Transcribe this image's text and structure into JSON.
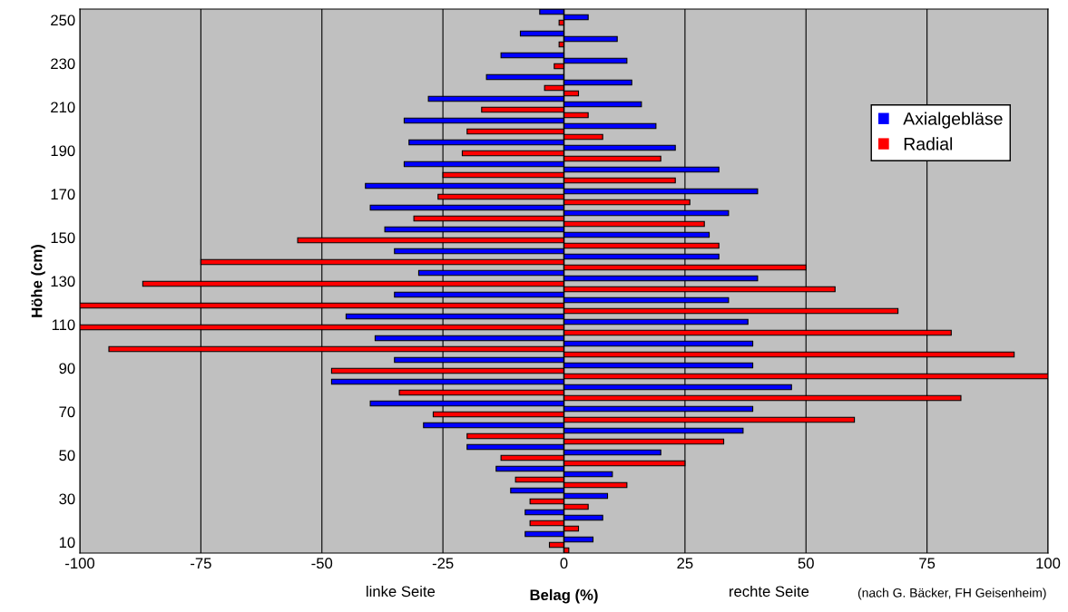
{
  "chart_data": {
    "type": "bar",
    "orientation": "horizontal",
    "xlabel": "Belag (%)",
    "ylabel": "Höhe (cm)",
    "categories": [
      "250",
      null,
      "230",
      null,
      "210",
      null,
      "190",
      null,
      "170",
      null,
      "150",
      null,
      "130",
      null,
      "110",
      null,
      "90",
      null,
      "70",
      null,
      "50",
      null,
      "30",
      null,
      "10"
    ],
    "series": [
      {
        "name": "Axialgebläse",
        "color": "#0000ff",
        "values": [
          -5,
          -9,
          -13,
          -16,
          -28,
          -33,
          -32,
          -33,
          -41,
          -40,
          -37,
          -35,
          -30,
          -35,
          -45,
          -39,
          -35,
          -48,
          -40,
          -29,
          -20,
          -14,
          -11,
          -8,
          -8
        ]
      },
      {
        "color": "#0000ff",
        "values": [
          5,
          11,
          13,
          14,
          16,
          19,
          23,
          32,
          40,
          34,
          30,
          32,
          40,
          34,
          38,
          39,
          39,
          47,
          39,
          37,
          20,
          10,
          9,
          8,
          6
        ]
      },
      {
        "name": "Radial",
        "color": "#ff0000",
        "values": [
          -1,
          -1,
          -2,
          -4,
          -17,
          -20,
          -21,
          -25,
          -26,
          -31,
          -55,
          -75,
          -87,
          -100,
          -100,
          -94,
          -48,
          -34,
          -27,
          -20,
          -13,
          -10,
          -7,
          -7,
          -3
        ]
      },
      {
        "color": "#ff0000",
        "values": [
          null,
          null,
          null,
          3,
          5,
          8,
          20,
          23,
          26,
          29,
          32,
          50,
          56,
          69,
          80,
          93,
          100,
          82,
          60,
          33,
          25,
          13,
          5,
          3,
          1
        ]
      }
    ],
    "xlim": [
      -100,
      100
    ],
    "xticks": [
      -100,
      -75,
      -50,
      -25,
      0,
      25,
      50,
      75,
      100
    ],
    "grid": "x",
    "legend": "top right",
    "annotations": [
      "linke Seite",
      "rechte Seite",
      "(nach G. Bäcker, FH Geisenheim)"
    ]
  }
}
